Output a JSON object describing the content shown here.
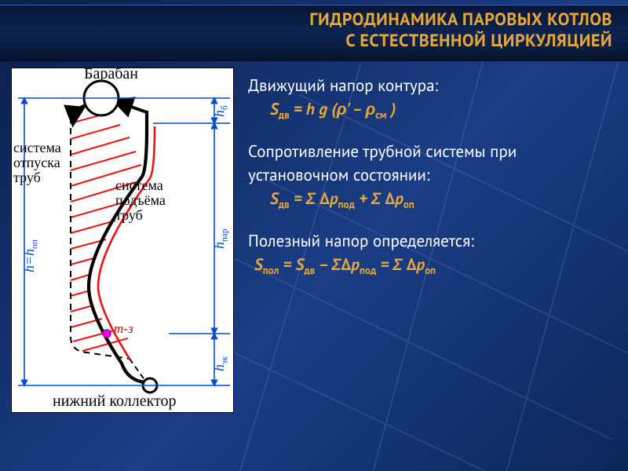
{
  "title_color": "#e5a63a",
  "title_line1": "ГИДРОДИНАМИКА ПАРОВЫХ КОТЛОВ",
  "title_line2": "С ЕСТЕСТВЕННОЙ ЦИРКУЛЯЦИЕЙ",
  "formula_color": "#e5a63a",
  "text1": "Движущий напор контура:",
  "formula1": "S<sub>дв</sub> = h g (ρ' – ρ<sub>см</sub> )",
  "text2": "Сопротивление трубной системы при установочном состоянии:",
  "formula2": "S<sub>дв</sub> = Σ Δp<sub>под</sub> + Σ Δp<sub>оп</sub>",
  "text3": "Полезный напор определяется:",
  "formula3": "S<sub>пол</sub> = S<sub>дв</sub> – ΣΔp<sub>под</sub> = Σ Δp<sub>оп</sub>",
  "diagram": {
    "label_drum": "Барабан",
    "label_down": "система отпуска труб",
    "label_up": "система подъёма труб",
    "label_bottom": "нижний коллектор",
    "label_tz": "т-з",
    "h_b": "h<sub>б</sub>",
    "h_par": "h<sub>пар</sub>",
    "h_ek": "h<sub>эк</sub>",
    "h_op": "h=h<sub>оп</sub>",
    "colors": {
      "hatch": "#e11",
      "dash": "#000",
      "label": "#004ccc",
      "tz": "#e0e"
    }
  }
}
